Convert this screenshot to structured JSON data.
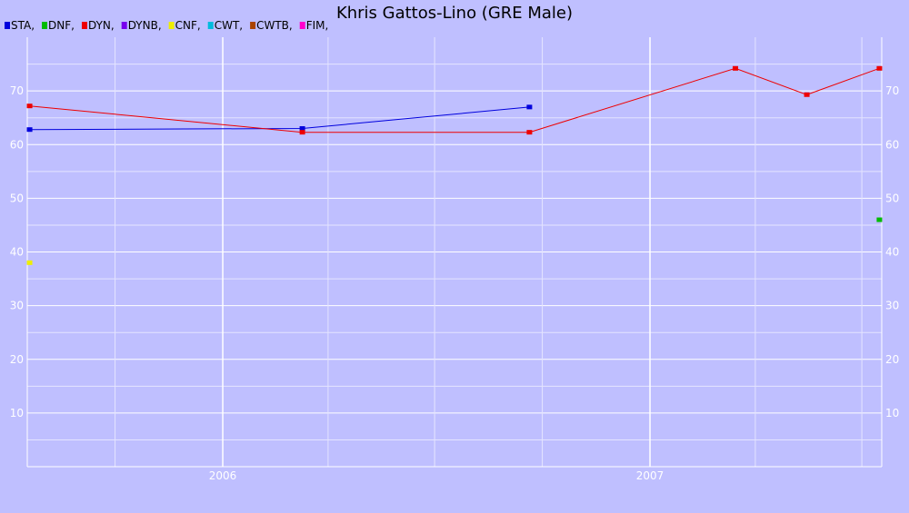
{
  "chart_data": {
    "type": "line",
    "title": "Khris Gattos-Lino (GRE Male)",
    "legend": [
      {
        "label": "STA,",
        "color": "#0000dd"
      },
      {
        "label": "DNF,",
        "color": "#00bb00"
      },
      {
        "label": "DYN,",
        "color": "#ee0000"
      },
      {
        "label": "DYNB,",
        "color": "#7700ee"
      },
      {
        "label": "CNF,",
        "color": "#eeee00"
      },
      {
        "label": "CWT,",
        "color": "#00bbdd"
      },
      {
        "label": "CWTB,",
        "color": "#aa4400"
      },
      {
        "label": "FIM,",
        "color": "#ff00cc"
      }
    ],
    "legend_position": "top-left",
    "x_axis": {
      "type": "date",
      "min": "2005-07-18",
      "max": "2007-07-18",
      "tick_labels": [
        "2006",
        "2007"
      ],
      "ticks": [
        "2006-01-01",
        "2007-01-01"
      ]
    },
    "y_axis": {
      "min": 0,
      "max": 80,
      "ticks": [
        10,
        20,
        30,
        40,
        50,
        60,
        70
      ]
    },
    "grid": true,
    "series": [
      {
        "name": "STA",
        "color": "#0000dd",
        "points": [
          {
            "x": "2005-07-20",
            "y": 62.8
          },
          {
            "x": "2006-03-10",
            "y": 63.0
          },
          {
            "x": "2006-09-20",
            "y": 67.0
          }
        ]
      },
      {
        "name": "DNF",
        "color": "#00bb00",
        "points": [
          {
            "x": "2007-07-16",
            "y": 46
          }
        ]
      },
      {
        "name": "DYN",
        "color": "#ee0000",
        "points": [
          {
            "x": "2005-07-20",
            "y": 67.2
          },
          {
            "x": "2006-03-10",
            "y": 62.3
          },
          {
            "x": "2006-09-20",
            "y": 62.3
          },
          {
            "x": "2007-03-15",
            "y": 74.2
          },
          {
            "x": "2007-05-15",
            "y": 69.3
          },
          {
            "x": "2007-07-16",
            "y": 74.2
          }
        ]
      },
      {
        "name": "CNF",
        "color": "#eeee00",
        "points": [
          {
            "x": "2005-07-20",
            "y": 38
          }
        ]
      }
    ]
  }
}
